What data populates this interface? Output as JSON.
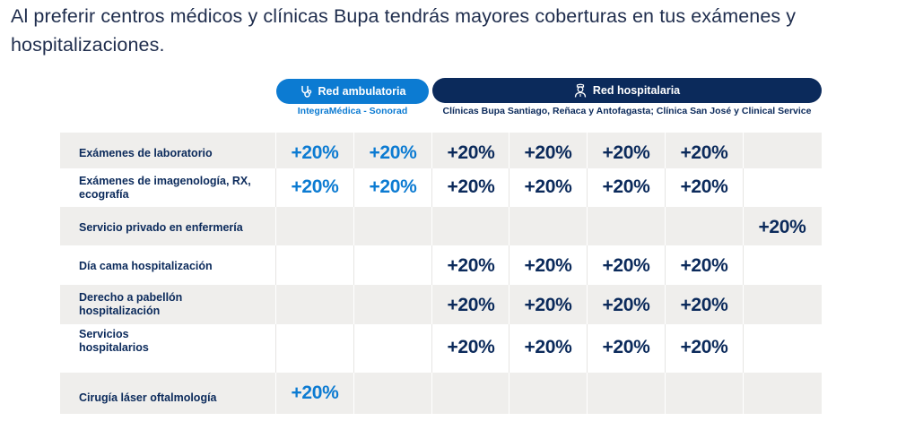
{
  "intro": "Al preferir centros médicos y clínicas Bupa tendrás mayores coberturas en tus exámenes y hospitalizaciones.",
  "networks": {
    "ambulatory": {
      "label": "Red ambulatoria",
      "icon": "stethoscope-icon",
      "subtitle": "IntegraMédica - Sonorad",
      "color": "#0c7bd2"
    },
    "hospital": {
      "label": "Red hospitalaria",
      "icon": "nurse-icon",
      "subtitle": "Clínicas Bupa Santiago, Reñaca y Antofagasta; Clínica San José y Clinical Service",
      "color": "#0b2a5b"
    }
  },
  "columns": [
    "ambulatory",
    "ambulatory",
    "hospital",
    "hospital",
    "hospital",
    "hospital",
    "hospital"
  ],
  "rows": [
    {
      "label": "Exámenes de laboratorio",
      "cells": [
        "+20%",
        "+20%",
        "+20%",
        "+20%",
        "+20%",
        "+20%",
        ""
      ]
    },
    {
      "label": "Exámenes de imagenología, RX, ecografía",
      "cells": [
        "+20%",
        "+20%",
        "+20%",
        "+20%",
        "+20%",
        "+20%",
        ""
      ]
    },
    {
      "label": "Servicio privado en enfermería",
      "cells": [
        "",
        "",
        "",
        "",
        "",
        "",
        "+20%"
      ]
    },
    {
      "label": "Día cama hospitalización",
      "cells": [
        "",
        "",
        "+20%",
        "+20%",
        "+20%",
        "+20%",
        ""
      ]
    },
    {
      "label": "Derecho a pabellón hospitalización",
      "cells": [
        "",
        "",
        "+20%",
        "+20%",
        "+20%",
        "+20%",
        ""
      ]
    },
    {
      "label": "Servicios hospitalarios",
      "cells": [
        "",
        "",
        "+20%",
        "+20%",
        "+20%",
        "+20%",
        ""
      ]
    },
    {
      "label": "Cirugía láser oftalmología",
      "cells": [
        "+20%",
        "",
        "",
        "",
        "",
        "",
        ""
      ]
    }
  ]
}
